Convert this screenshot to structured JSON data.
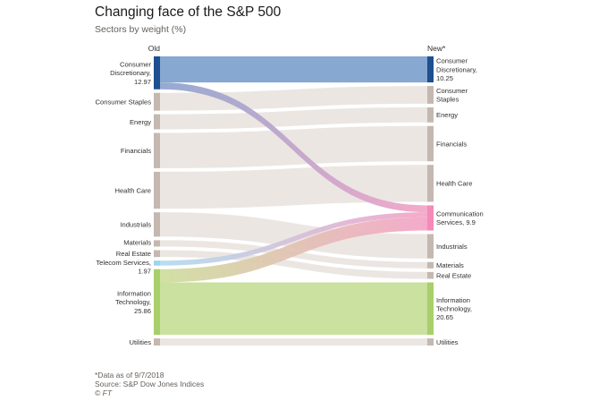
{
  "title": "Changing face of the S&P 500",
  "subtitle": "Sectors by weight (%)",
  "footer": {
    "note": "*Data as of 9/7/2018",
    "source": "Source: S&P Dow Jones Indices",
    "credit": "© FT"
  },
  "colors": {
    "accent_blue": "#1d4f91",
    "blue_band": "#7fa3cf",
    "green": "#c7df9a",
    "green_node": "#a8cf6a",
    "pink_node": "#f58ab8",
    "light_blue_node": "#9ed4ee",
    "node_gray": "#c4b8b0",
    "band_gray": "#ebe6e2"
  },
  "chart_data": {
    "type": "sankey",
    "title": "Changing face of the S&P 500",
    "subtitle": "Sectors by weight (%)",
    "left_header": "Old",
    "right_header": "New*",
    "left_nodes": [
      {
        "id": "cd",
        "label": "Consumer Discretionary, 12.97",
        "lines": [
          "Consumer",
          "Discretionary,",
          "12.97"
        ],
        "value": 12.97
      },
      {
        "id": "cs",
        "label": "Consumer Staples",
        "lines": [
          "Consumer Staples"
        ],
        "value": 7.0
      },
      {
        "id": "en",
        "label": "Energy",
        "lines": [
          "Energy"
        ],
        "value": 5.95
      },
      {
        "id": "fi",
        "label": "Financials",
        "lines": [
          "Financials"
        ],
        "value": 13.9
      },
      {
        "id": "hc",
        "label": "Health Care",
        "lines": [
          "Health Care"
        ],
        "value": 14.55
      },
      {
        "id": "in",
        "label": "Industrials",
        "lines": [
          "Industrials"
        ],
        "value": 9.6
      },
      {
        "id": "ma",
        "label": "Materials",
        "lines": [
          "Materials"
        ],
        "value": 2.5
      },
      {
        "id": "re",
        "label": "Real Estate",
        "lines": [
          "Real Estate"
        ],
        "value": 2.7
      },
      {
        "id": "tc",
        "label": "Telecom Services, 1.97",
        "lines": [
          "Telecom Services,",
          "1.97"
        ],
        "value": 1.97
      },
      {
        "id": "it",
        "label": "Information Technology, 25.86",
        "lines": [
          "Information",
          "Technology,",
          "25.86"
        ],
        "value": 25.86
      },
      {
        "id": "ut",
        "label": "Utilities",
        "lines": [
          "Utilities"
        ],
        "value": 2.8
      }
    ],
    "right_nodes": [
      {
        "id": "cd",
        "label": "Consumer Discretionary, 10.25",
        "lines": [
          "Consumer",
          "Discretionary,",
          "10.25"
        ],
        "value": 10.25
      },
      {
        "id": "cs",
        "label": "Consumer Staples",
        "lines": [
          "Consumer",
          "Staples"
        ],
        "value": 7.0
      },
      {
        "id": "en",
        "label": "Energy",
        "lines": [
          "Energy"
        ],
        "value": 5.95
      },
      {
        "id": "fi",
        "label": "Financials",
        "lines": [
          "Financials"
        ],
        "value": 13.9
      },
      {
        "id": "hc",
        "label": "Health Care",
        "lines": [
          "Health Care"
        ],
        "value": 14.55
      },
      {
        "id": "co",
        "label": "Communication Services, 9.9",
        "lines": [
          "Communication",
          "Services, 9.9"
        ],
        "value": 9.9
      },
      {
        "id": "in",
        "label": "Industrials",
        "lines": [
          "Industrials"
        ],
        "value": 9.6
      },
      {
        "id": "ma",
        "label": "Materials",
        "lines": [
          "Materials"
        ],
        "value": 2.5
      },
      {
        "id": "re",
        "label": "Real Estate",
        "lines": [
          "Real Estate"
        ],
        "value": 2.7
      },
      {
        "id": "it",
        "label": "Information Technology, 20.65",
        "lines": [
          "Information",
          "Technology,",
          "20.65"
        ],
        "value": 20.65
      },
      {
        "id": "ut",
        "label": "Utilities",
        "lines": [
          "Utilities"
        ],
        "value": 2.8
      }
    ],
    "flows": [
      {
        "from": "cd",
        "to": "cd",
        "value": 10.25,
        "color": "blue"
      },
      {
        "from": "cd",
        "to": "co",
        "value": 2.72,
        "color": "blue-pink"
      },
      {
        "from": "cs",
        "to": "cs",
        "value": 7.0,
        "color": "gray"
      },
      {
        "from": "en",
        "to": "en",
        "value": 5.95,
        "color": "gray"
      },
      {
        "from": "fi",
        "to": "fi",
        "value": 13.9,
        "color": "gray"
      },
      {
        "from": "hc",
        "to": "hc",
        "value": 14.55,
        "color": "gray"
      },
      {
        "from": "in",
        "to": "in",
        "value": 9.6,
        "color": "gray"
      },
      {
        "from": "ma",
        "to": "ma",
        "value": 2.5,
        "color": "gray"
      },
      {
        "from": "re",
        "to": "re",
        "value": 2.7,
        "color": "gray"
      },
      {
        "from": "tc",
        "to": "co",
        "value": 1.97,
        "color": "lightblue-pink"
      },
      {
        "from": "it",
        "to": "co",
        "value": 5.21,
        "color": "green-pink"
      },
      {
        "from": "it",
        "to": "it",
        "value": 20.65,
        "color": "green"
      },
      {
        "from": "ut",
        "to": "ut",
        "value": 2.8,
        "color": "gray"
      }
    ]
  }
}
